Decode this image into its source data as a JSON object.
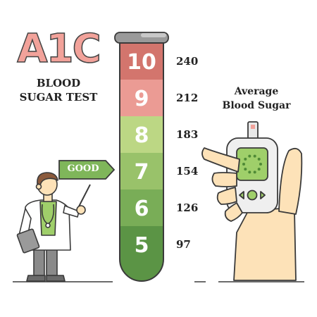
{
  "title": {
    "main": "A1C",
    "line1": "BLOOD",
    "line2": "SUGAR TEST"
  },
  "right_label": {
    "line1": "Average",
    "line2": "Blood Sugar"
  },
  "good_label": "GOOD",
  "levels": [
    {
      "a1c": "10",
      "mgdl": "240",
      "color": "#d3756d"
    },
    {
      "a1c": "9",
      "mgdl": "212",
      "color": "#eb9b94"
    },
    {
      "a1c": "8",
      "mgdl": "183",
      "color": "#bcd784"
    },
    {
      "a1c": "7",
      "mgdl": "154",
      "color": "#99c26a"
    },
    {
      "a1c": "6",
      "mgdl": "126",
      "color": "#79ad57"
    },
    {
      "a1c": "5",
      "mgdl": "97",
      "color": "#5b9445"
    }
  ],
  "colors": {
    "outline": "#3a3a3a",
    "good_sign": "#7fb65a",
    "tube_cap": "#9a9a9a",
    "meter_screen": "#9fcf6a",
    "skin": "#fde2b8",
    "coat": "#ffffff",
    "shirt": "#9fcf6a",
    "pants": "#8a8a8a",
    "hair": "#8b5a3c"
  },
  "icons": {
    "doctor": "doctor-pointing-icon",
    "meter": "glucose-meter-icon",
    "hand": "hand-holding-icon"
  }
}
